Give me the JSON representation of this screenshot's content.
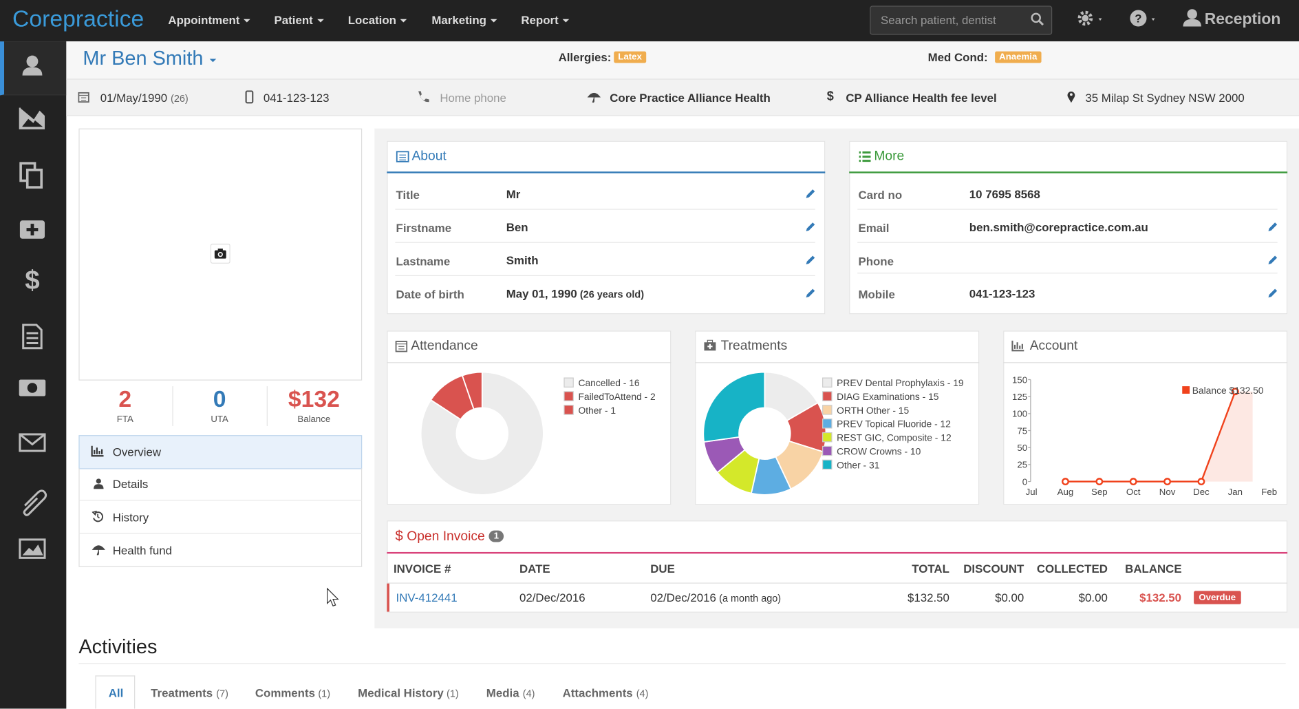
{
  "nav": {
    "brand": "Corepractice",
    "menus": [
      "Appointment",
      "Patient",
      "Location",
      "Marketing",
      "Report"
    ],
    "search_placeholder": "Search patient, dentist",
    "user": "Reception"
  },
  "patient": {
    "name": "Mr Ben Smith",
    "allergies_label": "Allergies:",
    "allergies": "Latex",
    "medcond_label": "Med Cond:",
    "medcond": "Anaemia",
    "info": {
      "dob": "01/May/1990",
      "age": "(26)",
      "mobile": "041-123-123",
      "home_phone": "Home phone",
      "fund": "Core Practice Alliance Health",
      "fee_level": "CP Alliance Health fee level",
      "address": "35 Milap St Sydney NSW 2000"
    }
  },
  "stats": [
    {
      "value": "2",
      "label": "FTA"
    },
    {
      "value": "0",
      "label": "UTA"
    },
    {
      "value": "$132",
      "label": "Balance"
    }
  ],
  "side_menu": [
    "Overview",
    "Details",
    "History",
    "Health fund"
  ],
  "about": {
    "title": "About",
    "rows": [
      {
        "label": "Title",
        "value": "Mr"
      },
      {
        "label": "Firstname",
        "value": "Ben"
      },
      {
        "label": "Lastname",
        "value": "Smith"
      },
      {
        "label": "Date of birth",
        "value": "May 01, 1990",
        "note": "(26 years old)"
      }
    ]
  },
  "more": {
    "title": "More",
    "rows": [
      {
        "label": "Card no",
        "value": "10 7695 8568"
      },
      {
        "label": "Email",
        "value": "ben.smith@corepractice.com.au"
      },
      {
        "label": "Phone"
      },
      {
        "label": "Mobile",
        "value": "041-123-123"
      }
    ]
  },
  "chart_data": [
    {
      "type": "donut",
      "title": "Attendance",
      "categories": [
        "Cancelled - 16",
        "FailedToAttend - 2",
        "Other - 1"
      ],
      "values": [
        16,
        2,
        1
      ],
      "colors": [
        "#ececec",
        "#d9534f",
        "#d9534f"
      ]
    },
    {
      "type": "donut",
      "title": "Treatments",
      "categories": [
        "PREV Dental Prophylaxis - 19",
        "DIAG Examinations - 15",
        "ORTH Other - 15",
        "PREV Topical Fluoride - 12",
        "REST GIC, Composite - 12",
        "CROW Crowns - 10",
        "Other - 31"
      ],
      "values": [
        19,
        15,
        15,
        12,
        12,
        10,
        31
      ],
      "colors": [
        "#ececec",
        "#d9534f",
        "#f8d3a5",
        "#5dade2",
        "#d4e82a",
        "#9b59b6",
        "#17b3c6"
      ]
    },
    {
      "type": "line",
      "title": "Account",
      "categories": [
        "Jul",
        "Aug",
        "Sep",
        "Oct",
        "Nov",
        "Dec",
        "Jan",
        "Feb"
      ],
      "series": [
        {
          "name": "Balance $132.50",
          "color": "#f0421c",
          "values": [
            null,
            0,
            0,
            0,
            0,
            0,
            132.5,
            null
          ]
        }
      ],
      "ylim": [
        0,
        150
      ],
      "yticks": [
        0,
        25,
        50,
        75,
        100,
        125,
        150
      ]
    }
  ],
  "invoice": {
    "title": "Open Invoice",
    "count": "1",
    "columns": [
      "INVOICE #",
      "DATE",
      "DUE",
      "TOTAL",
      "DISCOUNT",
      "COLLECTED",
      "BALANCE"
    ],
    "row": {
      "invoice": "INV-412441",
      "date": "02/Dec/2016",
      "due": "02/Dec/2016",
      "due_note": "(a month ago)",
      "total": "$132.50",
      "discount": "$0.00",
      "collected": "$0.00",
      "balance": "$132.50",
      "status": "Overdue"
    }
  },
  "activities": {
    "title": "Activities",
    "tabs": [
      {
        "name": "All"
      },
      {
        "name": "Treatments",
        "count": "(7)"
      },
      {
        "name": "Comments",
        "count": "(1)"
      },
      {
        "name": "Medical History",
        "count": "(1)"
      },
      {
        "name": "Media",
        "count": "(4)"
      },
      {
        "name": "Attachments",
        "count": "(4)"
      }
    ]
  }
}
